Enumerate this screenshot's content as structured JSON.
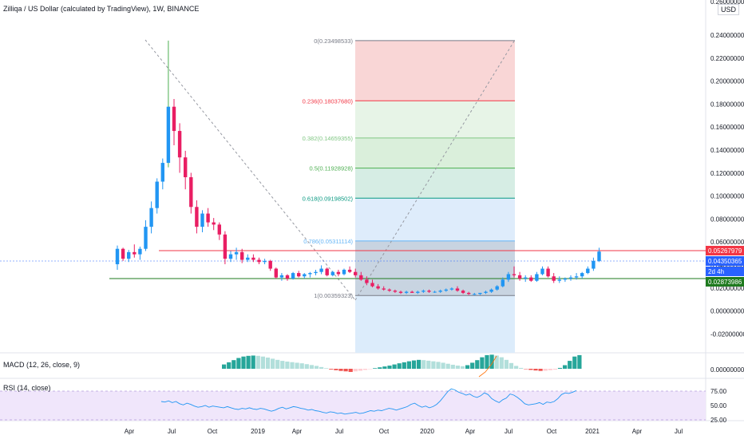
{
  "header": {
    "title": "Zilliqa / US Dollar (calculated by TradingView), 1W, BINANCE",
    "currency": "USD"
  },
  "indicators": {
    "macd_label": "MACD (12, 26, close, 9)",
    "rsi_label": "RSI (14, close)"
  },
  "chart_data": {
    "type": "candlestick",
    "title": "Zilliqa / US Dollar (calculated by TradingView), 1W, BINANCE",
    "price_axis_ticks": [
      "0.24000000",
      "0.22000000",
      "0.20000000",
      "0.18000000",
      "0.16000000",
      "0.14000000",
      "0.12000000",
      "0.10000000",
      "0.08000000",
      "0.06000000",
      "0.04000000",
      "0.02000000",
      "0.00000000",
      "-0.02000000"
    ],
    "price_axis_top_cut": "0.26000000",
    "time_axis_ticks": [
      "Apr",
      "Jul",
      "Oct",
      "2019",
      "Apr",
      "Jul",
      "Oct",
      "2020",
      "Apr",
      "Jul",
      "Oct",
      "2021",
      "Apr",
      "Jul"
    ],
    "price_labels": [
      {
        "value": "0.05267979",
        "color": "#f23645"
      },
      {
        "value": "0.04350365",
        "color": "#2962ff"
      },
      {
        "value": "2d 4h",
        "color": "#2962ff"
      },
      {
        "value": "0.02873986",
        "color": "#1e7a1e"
      }
    ],
    "fib_levels": [
      {
        "label": "0(0.23498533)",
        "price": 0.23498533,
        "color": "#787b86"
      },
      {
        "label": "0.236(0.18037680)",
        "price": 0.1803768,
        "color": "#f23645"
      },
      {
        "label": "0.382(0.14659355)",
        "price": 0.14659355,
        "color": "#81c784"
      },
      {
        "label": "0.5(0.11928928)",
        "price": 0.11928928,
        "color": "#4caf50"
      },
      {
        "label": "0.618(0.09198502)",
        "price": 0.09198502,
        "color": "#089981"
      },
      {
        "label": "0.786(0.05311114)",
        "price": 0.05311114,
        "color": "#64b5f6"
      },
      {
        "label": "1(0.00359323)",
        "price": 0.00359323,
        "color": "#787b86"
      }
    ],
    "candles_ohlc": [
      [
        0.032,
        0.049,
        0.027,
        0.046
      ],
      [
        0.046,
        0.047,
        0.035,
        0.037
      ],
      [
        0.037,
        0.045,
        0.034,
        0.043
      ],
      [
        0.043,
        0.05,
        0.038,
        0.041
      ],
      [
        0.041,
        0.048,
        0.036,
        0.046
      ],
      [
        0.046,
        0.072,
        0.044,
        0.066
      ],
      [
        0.066,
        0.089,
        0.06,
        0.083
      ],
      [
        0.083,
        0.11,
        0.078,
        0.107
      ],
      [
        0.107,
        0.128,
        0.1,
        0.124
      ],
      [
        0.124,
        0.235,
        0.12,
        0.175
      ],
      [
        0.175,
        0.182,
        0.14,
        0.153
      ],
      [
        0.153,
        0.16,
        0.115,
        0.129
      ],
      [
        0.129,
        0.135,
        0.1,
        0.111
      ],
      [
        0.111,
        0.115,
        0.078,
        0.084
      ],
      [
        0.084,
        0.09,
        0.06,
        0.066
      ],
      [
        0.066,
        0.081,
        0.061,
        0.078
      ],
      [
        0.078,
        0.083,
        0.066,
        0.07
      ],
      [
        0.07,
        0.074,
        0.063,
        0.068
      ],
      [
        0.068,
        0.07,
        0.054,
        0.059
      ],
      [
        0.059,
        0.062,
        0.032,
        0.037
      ],
      [
        0.037,
        0.044,
        0.034,
        0.041
      ],
      [
        0.041,
        0.047,
        0.036,
        0.043
      ],
      [
        0.043,
        0.046,
        0.033,
        0.036
      ],
      [
        0.036,
        0.041,
        0.034,
        0.038
      ],
      [
        0.038,
        0.041,
        0.034,
        0.036
      ],
      [
        0.036,
        0.038,
        0.032,
        0.034
      ],
      [
        0.034,
        0.037,
        0.032,
        0.035
      ],
      [
        0.035,
        0.036,
        0.026,
        0.028
      ],
      [
        0.028,
        0.029,
        0.019,
        0.02
      ],
      [
        0.02,
        0.024,
        0.017,
        0.022
      ],
      [
        0.022,
        0.023,
        0.017,
        0.019
      ],
      [
        0.019,
        0.025,
        0.018,
        0.024
      ],
      [
        0.024,
        0.026,
        0.02,
        0.021
      ],
      [
        0.021,
        0.024,
        0.019,
        0.023
      ],
      [
        0.023,
        0.025,
        0.02,
        0.024
      ],
      [
        0.024,
        0.027,
        0.022,
        0.025
      ],
      [
        0.025,
        0.031,
        0.023,
        0.028
      ],
      [
        0.028,
        0.029,
        0.021,
        0.022
      ],
      [
        0.022,
        0.026,
        0.021,
        0.025
      ],
      [
        0.025,
        0.027,
        0.021,
        0.023
      ],
      [
        0.023,
        0.028,
        0.022,
        0.027
      ],
      [
        0.027,
        0.03,
        0.024,
        0.025
      ],
      [
        0.025,
        0.028,
        0.02,
        0.022
      ],
      [
        0.022,
        0.025,
        0.017,
        0.018
      ],
      [
        0.018,
        0.021,
        0.013,
        0.015
      ],
      [
        0.015,
        0.018,
        0.011,
        0.012
      ],
      [
        0.012,
        0.014,
        0.009,
        0.01
      ],
      [
        0.01,
        0.012,
        0.008,
        0.009
      ],
      [
        0.009,
        0.01,
        0.007,
        0.008
      ],
      [
        0.008,
        0.009,
        0.006,
        0.007
      ],
      [
        0.007,
        0.008,
        0.005,
        0.006
      ],
      [
        0.006,
        0.008,
        0.005,
        0.007
      ],
      [
        0.007,
        0.008,
        0.006,
        0.006
      ],
      [
        0.006,
        0.008,
        0.005,
        0.007
      ],
      [
        0.007,
        0.009,
        0.006,
        0.008
      ],
      [
        0.008,
        0.009,
        0.006,
        0.007
      ],
      [
        0.007,
        0.008,
        0.006,
        0.007
      ],
      [
        0.007,
        0.009,
        0.006,
        0.008
      ],
      [
        0.008,
        0.01,
        0.007,
        0.009
      ],
      [
        0.009,
        0.011,
        0.008,
        0.01
      ],
      [
        0.01,
        0.012,
        0.007,
        0.008
      ],
      [
        0.008,
        0.009,
        0.005,
        0.006
      ],
      [
        0.006,
        0.007,
        0.004,
        0.005
      ],
      [
        0.005,
        0.006,
        0.004,
        0.005
      ],
      [
        0.005,
        0.006,
        0.004,
        0.006
      ],
      [
        0.006,
        0.008,
        0.005,
        0.007
      ],
      [
        0.007,
        0.01,
        0.006,
        0.009
      ],
      [
        0.009,
        0.013,
        0.008,
        0.012
      ],
      [
        0.012,
        0.02,
        0.011,
        0.018
      ],
      [
        0.018,
        0.025,
        0.016,
        0.023
      ],
      [
        0.023,
        0.03,
        0.02,
        0.022
      ],
      [
        0.022,
        0.025,
        0.017,
        0.019
      ],
      [
        0.019,
        0.022,
        0.016,
        0.02
      ],
      [
        0.02,
        0.022,
        0.016,
        0.017
      ],
      [
        0.017,
        0.025,
        0.016,
        0.023
      ],
      [
        0.023,
        0.03,
        0.022,
        0.028
      ],
      [
        0.028,
        0.03,
        0.02,
        0.021
      ],
      [
        0.021,
        0.024,
        0.015,
        0.017
      ],
      [
        0.017,
        0.021,
        0.015,
        0.018
      ],
      [
        0.018,
        0.02,
        0.016,
        0.019
      ],
      [
        0.019,
        0.022,
        0.017,
        0.02
      ],
      [
        0.02,
        0.024,
        0.018,
        0.021
      ],
      [
        0.021,
        0.025,
        0.019,
        0.024
      ],
      [
        0.024,
        0.03,
        0.023,
        0.028
      ],
      [
        0.028,
        0.038,
        0.026,
        0.035
      ],
      [
        0.035,
        0.047,
        0.034,
        0.0435
      ]
    ],
    "macd_histogram": [
      0.3,
      0.45,
      0.6,
      0.75,
      0.85,
      0.9,
      0.92,
      0.9,
      0.85,
      0.78,
      0.7,
      0.62,
      0.55,
      0.5,
      0.46,
      0.42,
      0.38,
      0.32,
      0.26,
      0.2,
      0.12,
      0.04,
      -0.05,
      -0.1,
      -0.15,
      -0.18,
      -0.22,
      -0.18,
      -0.14,
      -0.08,
      -0.02,
      0.04,
      0.1,
      0.16,
      0.22,
      0.3,
      0.38,
      0.45,
      0.52,
      0.58,
      0.62,
      0.6,
      0.56,
      0.52,
      0.48,
      0.42,
      0.35,
      0.28,
      0.22,
      0.18,
      0.25,
      0.42,
      0.6,
      0.8,
      0.95,
      0.98,
      0.92,
      0.8,
      0.62,
      0.4,
      0.2,
      0.06,
      -0.02,
      -0.08,
      -0.12,
      -0.15,
      -0.14,
      -0.1,
      -0.06,
      0.06,
      0.25,
      0.55,
      0.85,
      0.95
    ],
    "rsi_range": [
      25,
      75
    ],
    "rsi_ticks": [
      "75.00",
      "50.00",
      "25.00"
    ]
  }
}
